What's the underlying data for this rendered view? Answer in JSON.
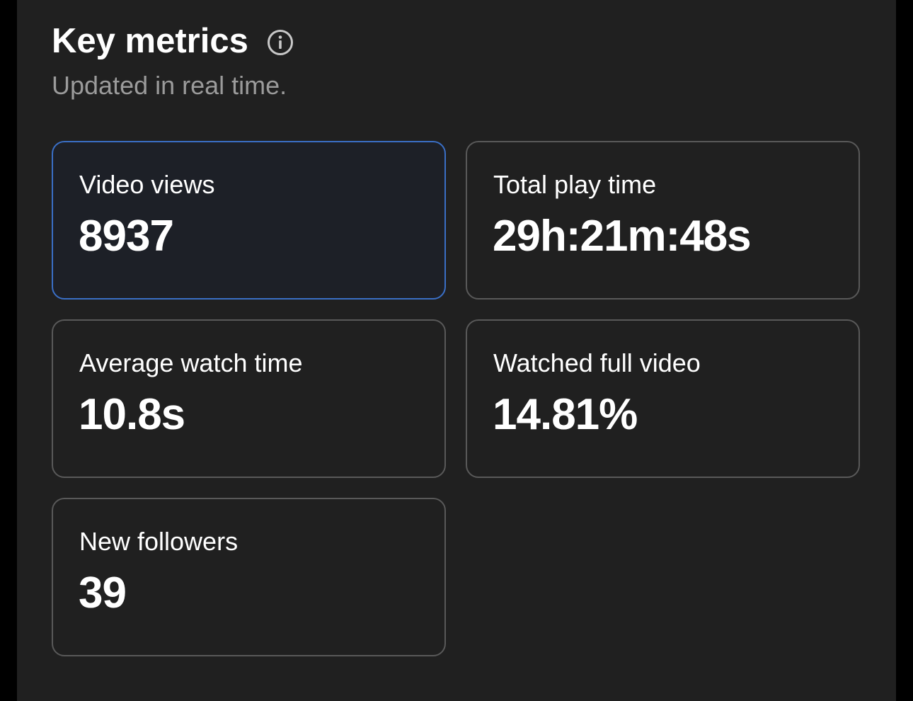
{
  "header": {
    "title": "Key metrics",
    "subtitle": "Updated in real time."
  },
  "metrics": [
    {
      "label": "Video views",
      "value": "8937"
    },
    {
      "label": "Total play time",
      "value": "29h:21m:48s"
    },
    {
      "label": "Average watch time",
      "value": "10.8s"
    },
    {
      "label": "Watched full video",
      "value": "14.81%"
    },
    {
      "label": "New followers",
      "value": "39"
    }
  ]
}
